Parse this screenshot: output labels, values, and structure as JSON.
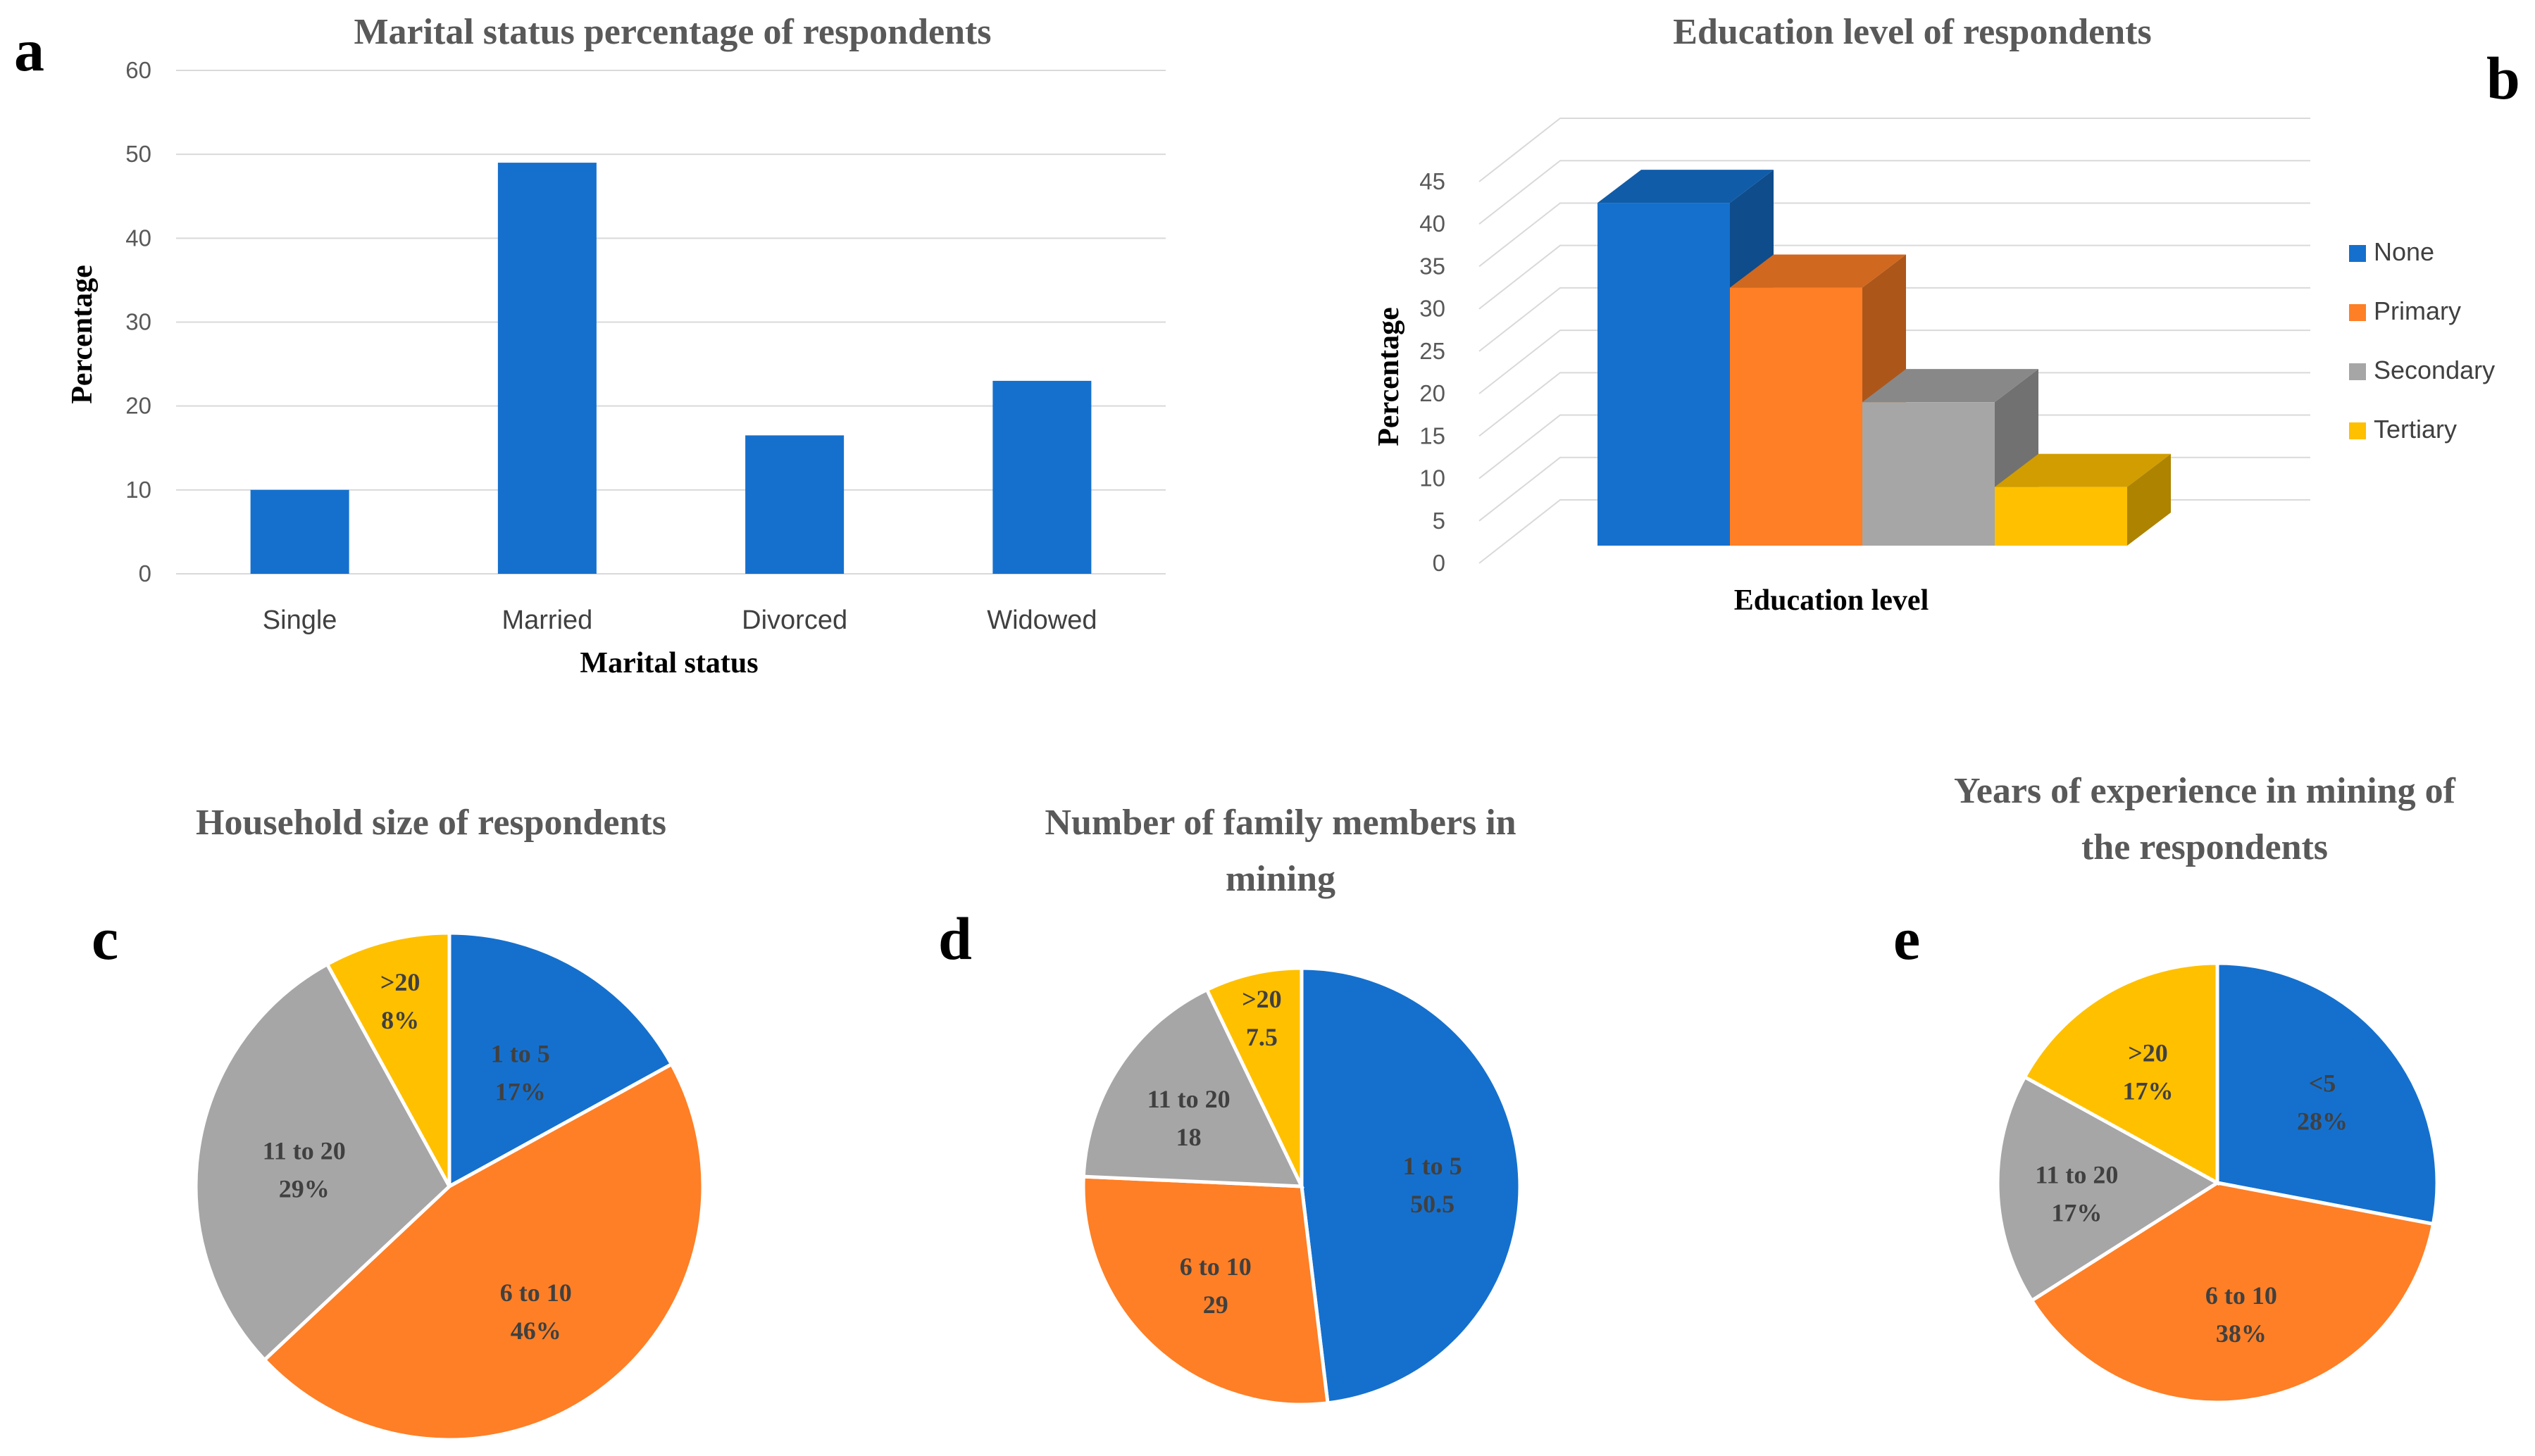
{
  "panels": {
    "a": "a",
    "b": "b",
    "c": "c",
    "d": "d",
    "e": "e"
  },
  "colors": {
    "blue": "#1570cd",
    "orange": "#fe7f26",
    "gray": "#a6a6a6",
    "yellow": "#ffc000",
    "grid": "#d9d9d9"
  },
  "chart_data": [
    {
      "id": "a",
      "type": "bar",
      "title": "Marital status percentage of respondents",
      "xlabel": "Marital status",
      "ylabel": "Percentage",
      "categories": [
        "Single",
        "Married",
        "Divorced",
        "Widowed"
      ],
      "values": [
        10,
        49,
        16.5,
        23
      ],
      "ylim": [
        0,
        60
      ],
      "yticks": [
        "0",
        "10",
        "20",
        "30",
        "40",
        "50",
        "60"
      ],
      "grid": true
    },
    {
      "id": "b",
      "type": "bar",
      "style": "3d-clustered",
      "title": "Education level of respondents",
      "xlabel": "Education level",
      "ylabel": "Percentage",
      "series": [
        {
          "name": "None",
          "values": [
            42.5
          ]
        },
        {
          "name": "Primary",
          "values": [
            32.5
          ]
        },
        {
          "name": "Secondary",
          "values": [
            19
          ]
        },
        {
          "name": "Tertiary",
          "values": [
            9
          ]
        }
      ],
      "ylim": [
        0,
        45
      ],
      "yticks": [
        "0",
        "5",
        "10",
        "15",
        "20",
        "25",
        "30",
        "35",
        "40",
        "45"
      ],
      "legend": "right",
      "grid": true
    },
    {
      "id": "c",
      "type": "pie",
      "title": "Household size of respondents",
      "slices": [
        {
          "label": "1 to 5",
          "value": 17,
          "display": "17%"
        },
        {
          "label": "6 to 10",
          "value": 46,
          "display": "46%"
        },
        {
          "label": "11 to 20",
          "value": 29,
          "display": "29%"
        },
        {
          "label": ">20",
          "value": 8,
          "display": "8%"
        }
      ]
    },
    {
      "id": "d",
      "type": "pie",
      "title": "Number of family members in mining",
      "title_lines": [
        "Number of family members in",
        "mining"
      ],
      "slices": [
        {
          "label": "1 to 5",
          "value": 50.5,
          "display": "50.5"
        },
        {
          "label": "6 to 10",
          "value": 29,
          "display": "29"
        },
        {
          "label": "11 to 20",
          "value": 18,
          "display": "18"
        },
        {
          "label": ">20",
          "value": 7.5,
          "display": "7.5"
        }
      ]
    },
    {
      "id": "e",
      "type": "pie",
      "title": "Years of experience in mining of the respondents",
      "title_lines": [
        "Years of experience in mining of",
        "the respondents"
      ],
      "slices": [
        {
          "label": "<5",
          "value": 28,
          "display": "28%"
        },
        {
          "label": "6 to 10",
          "value": 38,
          "display": "38%"
        },
        {
          "label": "11 to 20",
          "value": 17,
          "display": "17%"
        },
        {
          "label": ">20",
          "value": 17,
          "display": "17%"
        }
      ]
    }
  ]
}
